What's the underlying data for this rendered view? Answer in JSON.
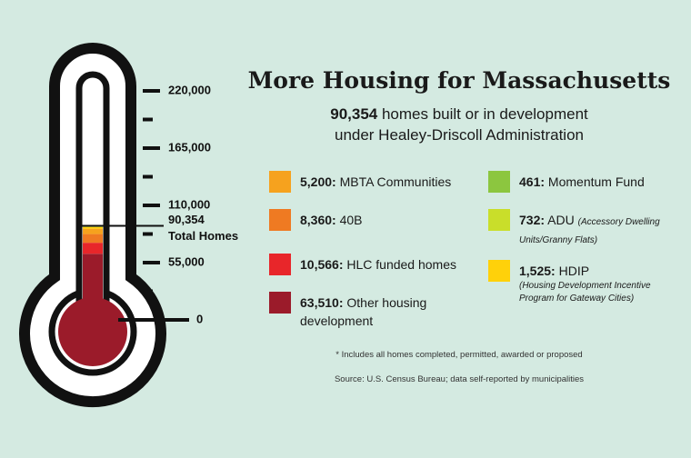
{
  "chart_data": {
    "type": "bar",
    "title": "More Housing for Massachusetts",
    "total": {
      "value": 90354,
      "label": "90,354"
    },
    "total_label": "Total Homes",
    "subtitle": [
      "homes built or in development",
      "under Healey-Driscoll Administration"
    ],
    "series": [
      {
        "name": "Other housing development",
        "color": "#9b1b2a",
        "values": [
          63510
        ],
        "value_labels": [
          "63,510:"
        ]
      },
      {
        "name": "HLC funded homes",
        "color": "#e8262a",
        "values": [
          10566
        ],
        "value_labels": [
          "10,566:"
        ]
      },
      {
        "name": "40B",
        "color": "#ef7a22",
        "values": [
          8360
        ],
        "value_labels": [
          "8,360:"
        ]
      },
      {
        "name": "MBTA Communities",
        "color": "#f6a21e",
        "values": [
          5200
        ],
        "value_labels": [
          "5,200:"
        ]
      },
      {
        "name": "HDIP",
        "color": "#ffd10a",
        "values": [
          1525
        ],
        "value_labels": [
          "1,525:"
        ],
        "note": "(Housing Development Incentive Program for Gateway Cities)"
      },
      {
        "name": "ADU",
        "color": "#c9de2a",
        "values": [
          732
        ],
        "value_labels": [
          "732:"
        ],
        "note": "(Accessory Dwelling Units/Granny Flats)"
      },
      {
        "name": "Momentum Fund",
        "color": "#8cc63f",
        "values": [
          461
        ],
        "value_labels": [
          "461:"
        ]
      }
    ],
    "ylim": [
      0,
      220000
    ],
    "yticks": [
      0,
      {
        "value": 55000,
        "label": "55,000"
      },
      {
        "value": 110000,
        "label": "110,000"
      },
      {
        "value": 165000,
        "label": "165,000"
      },
      {
        "value": 220000,
        "label": "220,000"
      }
    ],
    "minor_yticks": [
      27500,
      82500,
      137500,
      192500
    ],
    "footnote": "* Includes all homes completed, permitted, awarded or proposed",
    "source": "Source: U.S. Census Bureau; data self-reported by municipalities"
  }
}
